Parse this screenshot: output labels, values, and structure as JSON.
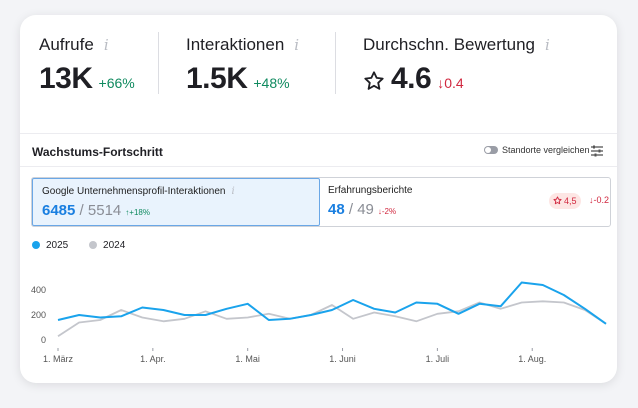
{
  "stats": [
    {
      "label": "Aufrufe",
      "value": "13K",
      "delta": "+66%",
      "direction": "up"
    },
    {
      "label": "Interaktionen",
      "value": "1.5K",
      "delta": "+48%",
      "direction": "up"
    },
    {
      "label": "Durchschn. Bewertung",
      "value": "4.6",
      "delta": "↓0.4",
      "direction": "down"
    }
  ],
  "info_glyph": "i",
  "section": {
    "title": "Wachstums-Fortschritt",
    "compare_label": "Standorte vergleichen"
  },
  "tabs": [
    {
      "label": "Google Unternehmensprofil-Interaktionen",
      "value": "6485",
      "separator": " / ",
      "previous": "5514",
      "change": "↑+18%"
    },
    {
      "label": "Erfahrungsberichte",
      "value": "48",
      "separator": " / ",
      "previous": "49",
      "change": "↓-2%",
      "rating": "4,5",
      "rating_change": "↓-0.2"
    }
  ],
  "legend": [
    {
      "name": "2025",
      "color": "#1aa3ec"
    },
    {
      "name": "2024",
      "color": "#c4c6cc"
    }
  ],
  "chart_data": {
    "type": "line",
    "y_ticks": [
      "0",
      "200",
      "400"
    ],
    "ylim": [
      0,
      500
    ],
    "x_tick_labels": [
      "1. März",
      "1. Apr.",
      "1. Mai",
      "1. Juni",
      "1. Juli",
      "1. Aug."
    ],
    "x_tick_index": [
      0,
      9,
      18,
      27,
      36,
      45
    ],
    "series": [
      {
        "name": "2025",
        "color": "#1aa3ec",
        "values": [
          160,
          200,
          180,
          190,
          260,
          240,
          200,
          200,
          250,
          290,
          160,
          170,
          200,
          240,
          320,
          250,
          220,
          300,
          290,
          210,
          290,
          270,
          460,
          440,
          360,
          250,
          130
        ]
      },
      {
        "name": "2024",
        "color": "#c4c6cc",
        "values": [
          30,
          140,
          160,
          240,
          180,
          150,
          170,
          230,
          170,
          180,
          210,
          170,
          200,
          280,
          170,
          220,
          190,
          150,
          210,
          230,
          300,
          250,
          300,
          310,
          300,
          240,
          130
        ]
      }
    ],
    "grid": false,
    "legend_position": "top-left"
  },
  "icons": {
    "rating_star": "star-icon",
    "settings": "sliders-icon",
    "toggle": "toggle-switch"
  }
}
